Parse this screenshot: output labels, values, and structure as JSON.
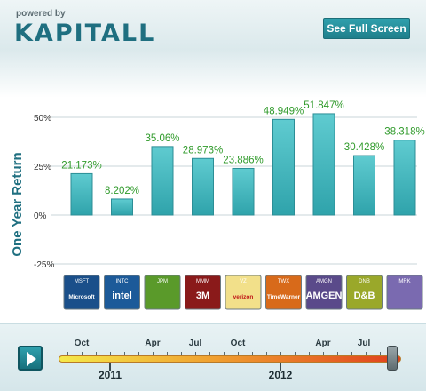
{
  "header": {
    "powered_by": "powered by",
    "logo_text": "KAPITALL",
    "full_screen_label": "See Full Screen"
  },
  "chart_data": {
    "type": "bar",
    "ylabel": "One Year Return",
    "ytick_labels": [
      "50%",
      "25%",
      "0%",
      "-25%"
    ],
    "yticks": [
      50,
      25,
      0,
      -25
    ],
    "ylim": [
      -30,
      60
    ],
    "categories": [
      "MSFT",
      "INTC",
      "JPM",
      "MMM",
      "VZ",
      "TWX",
      "AMGN",
      "DNB",
      "MRK"
    ],
    "values": [
      21.173,
      8.202,
      35.06,
      28.973,
      23.886,
      48.949,
      51.847,
      30.428,
      38.318
    ],
    "value_labels": [
      "21.173%",
      "8.202%",
      "35.06%",
      "28.973%",
      "23.886%",
      "48.949%",
      "51.847%",
      "30.428%",
      "38.318%"
    ],
    "bar_color": "#3fb6bd",
    "label_color": "#2f9a2a"
  },
  "logos": [
    {
      "ticker": "MSFT",
      "name": "Microsoft",
      "color": "#1a4f8a"
    },
    {
      "ticker": "INTC",
      "name": "intel",
      "color": "#1c5a99"
    },
    {
      "ticker": "JPM",
      "name": "",
      "color": "#5a9a2a"
    },
    {
      "ticker": "MMM",
      "name": "3M",
      "color": "#8a1a1a"
    },
    {
      "ticker": "VZ",
      "name": "verizon",
      "color": "#f2e08a"
    },
    {
      "ticker": "TWX",
      "name": "TimeWarner",
      "color": "#d86a1a"
    },
    {
      "ticker": "AMGN",
      "name": "AMGEN",
      "color": "#5a4a8a"
    },
    {
      "ticker": "DNB",
      "name": "D&B",
      "color": "#9aa82a"
    },
    {
      "ticker": "MRK",
      "name": "",
      "color": "#7a6ab0"
    }
  ],
  "timeline": {
    "months": [
      "Oct",
      "Apr",
      "Jul",
      "Oct",
      "Apr",
      "Jul"
    ],
    "years": [
      "2011",
      "2012"
    ]
  }
}
